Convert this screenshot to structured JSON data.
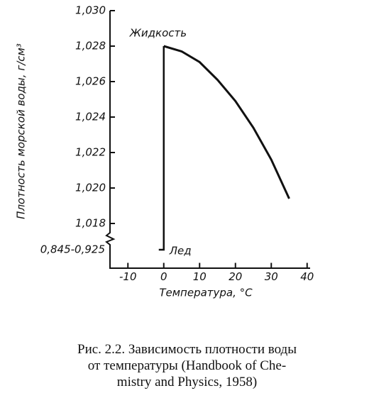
{
  "chart_data": {
    "type": "line",
    "y_label": "Плотность морской воды, г/см³",
    "x_label": "Температура, °C",
    "break_label": "0,845-0,925",
    "annotations": [
      "Жидкость",
      "Лед"
    ],
    "x": [
      0,
      5,
      10,
      15,
      20,
      25,
      30,
      35
    ],
    "series": [
      {
        "color": "#111111",
        "values": [
          1.028,
          1.0277,
          1.0271,
          1.0261,
          1.0249,
          1.0234,
          1.0216,
          1.0194
        ]
      }
    ],
    "xlim": [
      -15,
      40
    ],
    "xticks": [
      -10,
      0,
      10,
      20,
      30,
      40
    ],
    "ylim": [
      1.0155,
      1.03
    ],
    "yticks": [
      {
        "value": 1.018,
        "label": "1,018"
      },
      {
        "value": 1.02,
        "label": "1,020"
      },
      {
        "value": 1.022,
        "label": "1,022"
      },
      {
        "value": 1.024,
        "label": "1,024"
      },
      {
        "value": 1.026,
        "label": "1,026"
      },
      {
        "value": 1.028,
        "label": "1,028"
      },
      {
        "value": 1.03,
        "label": "1,030"
      }
    ]
  },
  "caption": [
    "Рис. 2.2. Зависимость плотности воды",
    "от температуры (Handbook of Che-",
    "mistry and Physics, 1958)"
  ]
}
